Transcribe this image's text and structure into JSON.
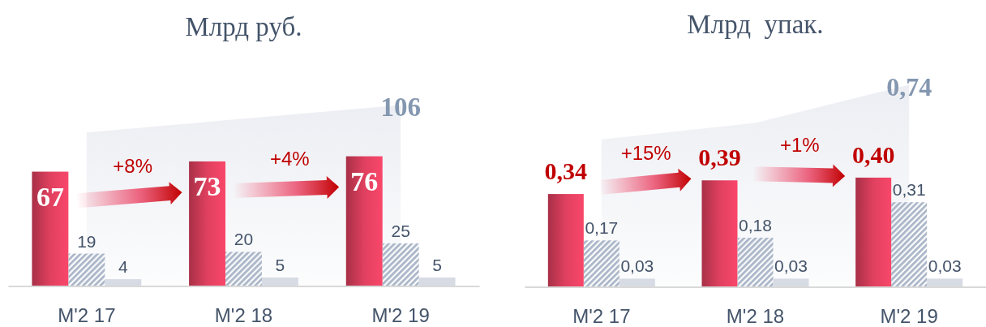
{
  "chart_data": [
    {
      "type": "bar",
      "title": "Млрд руб.",
      "categories": [
        "M'2 17",
        "M'2 18",
        "M'2 19"
      ],
      "tick_labels": "x",
      "series": [
        {
          "color": "#e0405f",
          "values": [
            67,
            73,
            76
          ],
          "value_labels": [
            "67",
            "73",
            "76"
          ]
        },
        {
          "color": "#aab6c8",
          "values": [
            19,
            20,
            25
          ],
          "value_labels": [
            "19",
            "20",
            "25"
          ]
        },
        {
          "color": "#d6dbe4",
          "values": [
            4,
            5,
            5
          ],
          "value_labels": [
            "4",
            "5",
            "5"
          ]
        }
      ],
      "annotations": [
        "+8%",
        "+4%",
        "106"
      ]
    },
    {
      "type": "bar",
      "title": "Млрд  упак.",
      "categories": [
        "M'2 17",
        "M'2 18",
        "M'2 19"
      ],
      "tick_labels": "x",
      "series": [
        {
          "color": "#e0405f",
          "values": [
            0.34,
            0.39,
            0.4
          ],
          "value_labels": [
            "0,34",
            "0,39",
            "0,40"
          ]
        },
        {
          "color": "#aab6c8",
          "values": [
            0.17,
            0.18,
            0.31
          ],
          "value_labels": [
            "0,17",
            "0,18",
            "0,31"
          ]
        },
        {
          "color": "#d6dbe4",
          "values": [
            0.03,
            0.03,
            0.03
          ],
          "value_labels": [
            "0,03",
            "0,03",
            "0,03"
          ]
        }
      ],
      "annotations": [
        "+15%",
        "+1%",
        "0,74"
      ]
    }
  ]
}
